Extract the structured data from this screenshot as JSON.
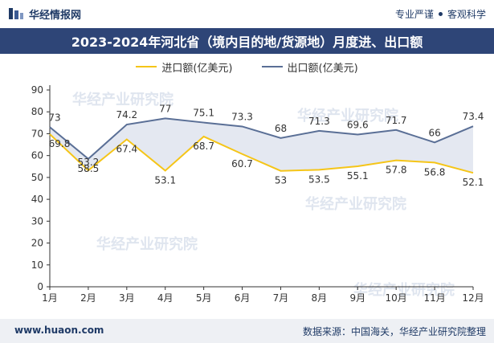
{
  "brand": {
    "logo_text": "华经情报网",
    "tagline_left": "专业严谨",
    "tagline_right": "客观科学"
  },
  "watermark_text": "华经产业研究院",
  "footer": {
    "url": "www.huaon.com",
    "source": "数据来源：中国海关，华经产业研究院整理"
  },
  "colors": {
    "import": "#f5c518",
    "export": "#5a6f96",
    "fill": "#dfe4ee",
    "title_bg": "#2e4577"
  },
  "chart_data": {
    "type": "line",
    "title": "2023-2024年河北省（境内目的地/货源地）月度进、出口额",
    "categories": [
      "1月",
      "2月",
      "3月",
      "4月",
      "5月",
      "6月",
      "7月",
      "8月",
      "9月",
      "10月",
      "11月",
      "12月"
    ],
    "series": [
      {
        "name": "进口额(亿美元)",
        "values": [
          69.8,
          53.2,
          67.4,
          53.1,
          68.7,
          60.7,
          53,
          53.5,
          55.1,
          57.8,
          56.8,
          52.1
        ]
      },
      {
        "name": "出口额(亿美元)",
        "values": [
          73,
          58.5,
          74.2,
          77,
          75.1,
          73.3,
          68,
          71.3,
          69.6,
          71.7,
          66,
          73.4
        ]
      }
    ],
    "ylim": [
      0,
      90
    ],
    "yticks": [
      0,
      10,
      20,
      30,
      40,
      50,
      60,
      70,
      80,
      90
    ],
    "legend": "top-center",
    "grid": false
  }
}
